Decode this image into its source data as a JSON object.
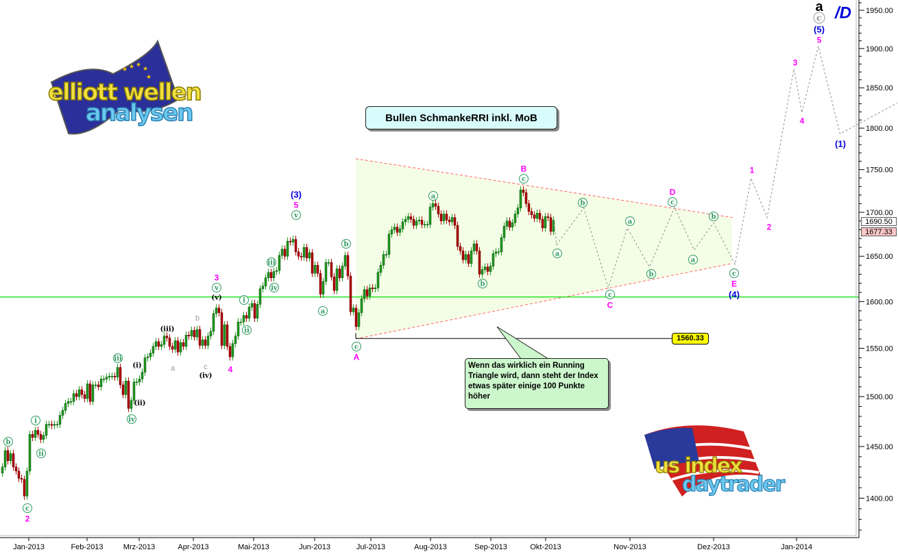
{
  "chart_data": {
    "type": "candlestick",
    "title": "Bullen SchmankeRRI inkl. MoB",
    "y_scale": "log",
    "ylim": [
      1360,
      1975
    ],
    "y_ticks": [
      "1950.00",
      "1900.00",
      "1850.00",
      "1800.00",
      "1750.00",
      "1700.00",
      "1650.00",
      "1600.00",
      "1550.00",
      "1500.00",
      "1450.00",
      "1400.00"
    ],
    "x_ticks": [
      "Jan-2013",
      "Feb-2013",
      "Mrz-2013",
      "Apr-2013",
      "Mai-2013",
      "Jun-2013",
      "Jul-2013",
      "Aug-2013",
      "Sep-2013",
      "Okt-2013",
      "Nov-2013",
      "Dez-2013",
      "Jan-2014"
    ],
    "daily_closes": [
      1430,
      1446,
      1436,
      1443,
      1430,
      1426,
      1419,
      1418,
      1402,
      1426,
      1462,
      1459,
      1466,
      1462,
      1457,
      1461,
      1472,
      1472,
      1471,
      1472,
      1472,
      1481,
      1486,
      1493,
      1495,
      1495,
      1503,
      1500,
      1507,
      1502,
      1498,
      1513,
      1495,
      1512,
      1512,
      1510,
      1518,
      1518,
      1520,
      1521,
      1521,
      1520,
      1530,
      1512,
      1502,
      1516,
      1488,
      1496,
      1515,
      1515,
      1518,
      1525,
      1540,
      1541,
      1545,
      1552,
      1557,
      1552,
      1554,
      1563,
      1561,
      1552,
      1549,
      1558,
      1546,
      1556,
      1552,
      1564,
      1563,
      1569,
      1562,
      1570,
      1553,
      1559,
      1553,
      1563,
      1568,
      1587,
      1593,
      1588,
      1553,
      1575,
      1552,
      1541,
      1555,
      1563,
      1578,
      1578,
      1585,
      1582,
      1594,
      1598,
      1582,
      1597,
      1614,
      1617,
      1626,
      1632,
      1626,
      1633,
      1634,
      1651,
      1658,
      1650,
      1667,
      1666,
      1669,
      1655,
      1650,
      1649,
      1660,
      1648,
      1654,
      1631,
      1640,
      1631,
      1608,
      1622,
      1643,
      1643,
      1627,
      1612,
      1636,
      1626,
      1639,
      1651,
      1628,
      1589,
      1593,
      1573,
      1588,
      1603,
      1613,
      1606,
      1615,
      1614,
      1615,
      1632,
      1640,
      1652,
      1652,
      1675,
      1680,
      1683,
      1677,
      1681,
      1689,
      1692,
      1695,
      1692,
      1685,
      1690,
      1691,
      1686,
      1686,
      1686,
      1706,
      1710,
      1707,
      1698,
      1690,
      1698,
      1691,
      1689,
      1694,
      1685,
      1661,
      1656,
      1646,
      1652,
      1642,
      1656,
      1664,
      1656,
      1630,
      1635,
      1638,
      1633,
      1639,
      1653,
      1655,
      1655,
      1671,
      1684,
      1690,
      1683,
      1688,
      1698,
      1705,
      1726,
      1723,
      1710,
      1701,
      1697,
      1693,
      1699,
      1692,
      1682,
      1695,
      1694,
      1678,
      1691
    ],
    "projection_path": [
      {
        "date": "2013-10-05",
        "value": 1663
      },
      {
        "date": "2013-10-15",
        "value": 1705
      },
      {
        "date": "2013-10-24",
        "value": 1615
      },
      {
        "date": "2013-10-31",
        "value": 1682
      },
      {
        "date": "2013-11-08",
        "value": 1638
      },
      {
        "date": "2013-11-17",
        "value": 1706
      },
      {
        "date": "2013-11-24",
        "value": 1657
      },
      {
        "date": "2013-12-01",
        "value": 1688
      },
      {
        "date": "2013-12-09",
        "value": 1641
      },
      {
        "date": "2013-12-15",
        "value": 1740
      },
      {
        "date": "2013-12-21",
        "value": 1694
      },
      {
        "date": "2013-12-31",
        "value": 1874
      },
      {
        "date": "2014-01-03",
        "value": 1819
      },
      {
        "date": "2014-01-09",
        "value": 1903
      },
      {
        "date": "2014-01-17",
        "value": 1793
      },
      {
        "date": "2014-02-07",
        "value": 1831
      }
    ],
    "triangle": {
      "upper": [
        {
          "date": "2013-06-24",
          "value": 1763
        },
        {
          "date": "2013-12-08",
          "value": 1694
        }
      ],
      "lower": [
        {
          "date": "2013-06-24",
          "value": 1560
        },
        {
          "date": "2013-12-08",
          "value": 1642
        }
      ]
    },
    "horizontal_lines": [
      {
        "value": 1605,
        "color": "#00e000"
      },
      {
        "value": 1560.33,
        "label": "1560.33",
        "color": "#000000",
        "label_bg": "#ffff00"
      }
    ],
    "price_tags": [
      {
        "label": "1690.50",
        "bg": "#ffffff"
      },
      {
        "label": "1677.33",
        "bg": "#ffc8c8"
      }
    ],
    "wave_labels": [
      {
        "text": "b",
        "style": "circled"
      },
      {
        "text": "c",
        "style": "circled"
      },
      {
        "text": "2",
        "style": "magenta"
      },
      {
        "text": "i",
        "style": "circled"
      },
      {
        "text": "ii",
        "style": "circled"
      },
      {
        "text": "iii",
        "style": "circled"
      },
      {
        "text": "iv",
        "style": "circled"
      },
      {
        "text": "(i)",
        "style": "black"
      },
      {
        "text": "(ii)",
        "style": "black"
      },
      {
        "text": "(iii)",
        "style": "black"
      },
      {
        "text": "a",
        "style": "gray"
      },
      {
        "text": "b",
        "style": "gray"
      },
      {
        "text": "c",
        "style": "gray"
      },
      {
        "text": "(iv)",
        "style": "black"
      },
      {
        "text": "4",
        "style": "magenta"
      },
      {
        "text": "3",
        "style": "magenta"
      },
      {
        "text": "v",
        "style": "circled"
      },
      {
        "text": "(v)",
        "style": "black"
      },
      {
        "text": "i",
        "style": "circled"
      },
      {
        "text": "ii",
        "style": "circled"
      },
      {
        "text": "iii",
        "style": "circled"
      },
      {
        "text": "iv",
        "style": "circled"
      },
      {
        "text": "(3)",
        "style": "blue"
      },
      {
        "text": "5",
        "style": "magenta"
      },
      {
        "text": "v",
        "style": "circled"
      },
      {
        "text": "a",
        "style": "circled"
      },
      {
        "text": "b",
        "style": "circled"
      },
      {
        "text": "c",
        "style": "circled"
      },
      {
        "text": "A",
        "style": "magenta"
      },
      {
        "text": "a",
        "style": "circled"
      },
      {
        "text": "b",
        "style": "circled"
      },
      {
        "text": "B",
        "style": "magenta"
      },
      {
        "text": "c",
        "style": "circled"
      },
      {
        "text": "a",
        "style": "circled"
      },
      {
        "text": "b",
        "style": "circled"
      },
      {
        "text": "c",
        "style": "circled"
      },
      {
        "text": "C",
        "style": "magenta"
      },
      {
        "text": "a",
        "style": "circled"
      },
      {
        "text": "b",
        "style": "circled"
      },
      {
        "text": "D",
        "style": "magenta"
      },
      {
        "text": "c",
        "style": "circled"
      },
      {
        "text": "a",
        "style": "circled"
      },
      {
        "text": "b",
        "style": "circled"
      },
      {
        "text": "c",
        "style": "circled"
      },
      {
        "text": "E",
        "style": "magenta"
      },
      {
        "text": "(4)",
        "style": "blue"
      },
      {
        "text": "1",
        "style": "magenta"
      },
      {
        "text": "2",
        "style": "magenta"
      },
      {
        "text": "3",
        "style": "magenta"
      },
      {
        "text": "4",
        "style": "magenta"
      },
      {
        "text": "5",
        "style": "magenta"
      },
      {
        "text": "(5)",
        "style": "blue"
      },
      {
        "text": "(1)",
        "style": "blue"
      },
      {
        "text": "a",
        "style": "big-black"
      },
      {
        "text": "c",
        "style": "circled-gray"
      },
      {
        "text": "/D",
        "style": "big-blue"
      }
    ],
    "annotation": "Wenn das wirklich ein Running Triangle wird, dann steht der Index etwas später einige 100 Punkte höher",
    "colors": {
      "up": "#1f9a1f",
      "down": "#b00000",
      "triangle_line": "#ff6060",
      "triangle_fill": "#f4ffe0",
      "projection": "#a0a0a0",
      "magenta": "#ff00ff",
      "blue": "#0000dd",
      "circled": "#2e9a60"
    }
  },
  "logos": {
    "top_left": {
      "line1": "elliott wellen",
      "line2": "analysen"
    },
    "bottom_right": {
      "line1": "us index",
      "line2": "daytrader"
    }
  }
}
